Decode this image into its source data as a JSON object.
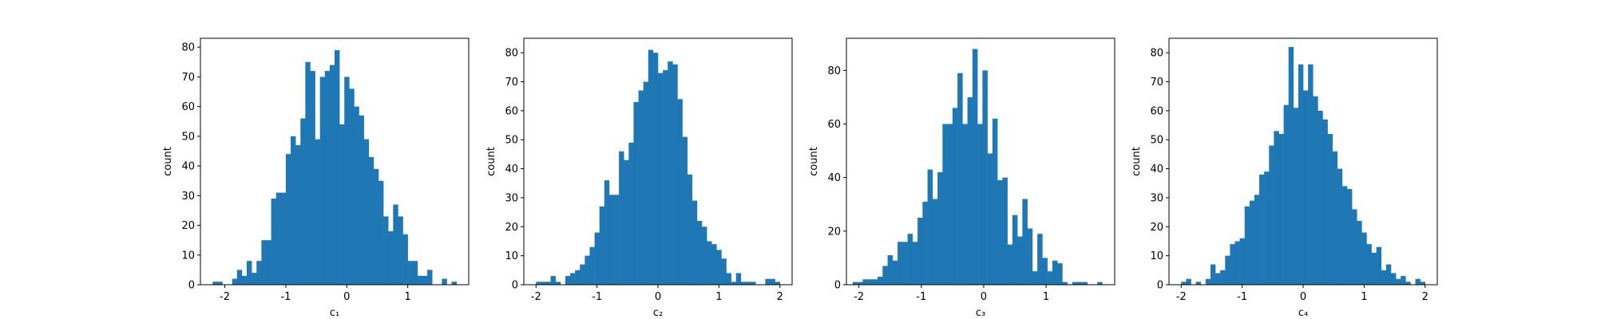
{
  "chart_data": [
    {
      "type": "histogram",
      "xlabel": "c₁",
      "ylabel": "count",
      "color": "#1f77b4",
      "bins": [
        -2.2,
        -2.12,
        -2.04,
        -1.96,
        -1.88,
        -1.8,
        -1.72,
        -1.64,
        -1.56,
        -1.48,
        -1.4,
        -1.32,
        -1.24,
        -1.16,
        -1.08,
        -1.0,
        -0.92,
        -0.84,
        -0.76,
        -0.68,
        -0.6,
        -0.52,
        -0.44,
        -0.36,
        -0.28,
        -0.2,
        -0.12,
        -0.04,
        0.04,
        0.12,
        0.2,
        0.28,
        0.36,
        0.44,
        0.52,
        0.6,
        0.68,
        0.76,
        0.84,
        0.92,
        1.0,
        1.08,
        1.16,
        1.24,
        1.32,
        1.4,
        1.48,
        1.56,
        1.64,
        1.72,
        1.8
      ],
      "values": [
        1,
        1,
        0,
        0,
        2,
        5,
        3,
        8,
        4,
        8,
        15,
        15,
        29,
        31,
        31,
        44,
        50,
        47,
        56,
        75,
        72,
        49,
        70,
        72,
        74,
        79,
        54,
        70,
        66,
        60,
        57,
        49,
        43,
        39,
        35,
        23,
        18,
        27,
        23,
        17,
        8,
        8,
        3,
        3,
        5,
        0,
        0,
        2,
        0,
        1
      ],
      "xlim": [
        -2.4,
        2.0
      ],
      "xticks": [
        -2,
        -1,
        0,
        1
      ],
      "ylim": [
        0,
        83
      ],
      "yticks": [
        0,
        10,
        20,
        30,
        40,
        50,
        60,
        70,
        80
      ]
    },
    {
      "type": "histogram",
      "xlabel": "c₂",
      "ylabel": "count",
      "color": "#1f77b4",
      "bins": [
        -2.0,
        -1.92,
        -1.84,
        -1.76,
        -1.68,
        -1.6,
        -1.52,
        -1.44,
        -1.36,
        -1.28,
        -1.2,
        -1.12,
        -1.04,
        -0.96,
        -0.88,
        -0.8,
        -0.72,
        -0.64,
        -0.56,
        -0.48,
        -0.4,
        -0.32,
        -0.24,
        -0.16,
        -0.08,
        0,
        0.08,
        0.16,
        0.24,
        0.32,
        0.4,
        0.48,
        0.56,
        0.64,
        0.72,
        0.8,
        0.88,
        0.96,
        1.04,
        1.12,
        1.2,
        1.28,
        1.36,
        1.44,
        1.52,
        1.6,
        1.68,
        1.76,
        1.84,
        1.92,
        2.0
      ],
      "values": [
        1,
        1,
        1,
        3,
        1,
        0,
        3,
        4,
        5,
        7,
        10,
        13,
        18,
        27,
        36,
        31,
        31,
        46,
        43,
        49,
        63,
        67,
        70,
        81,
        80,
        73,
        74,
        77,
        76,
        64,
        51,
        38,
        29,
        22,
        20,
        15,
        14,
        12,
        9,
        4,
        1,
        4,
        1,
        1,
        1,
        0,
        0,
        2,
        2,
        1
      ],
      "xlim": [
        -2.2,
        2.2
      ],
      "xticks": [
        -2,
        -1,
        0,
        1,
        2
      ],
      "ylim": [
        0,
        85
      ],
      "yticks": [
        0,
        10,
        20,
        30,
        40,
        50,
        60,
        70,
        80
      ]
    },
    {
      "type": "histogram",
      "xlabel": "c₃",
      "ylabel": "count",
      "color": "#1f77b4",
      "bins": [
        -2.1,
        -2.02,
        -1.94,
        -1.86,
        -1.78,
        -1.7,
        -1.62,
        -1.54,
        -1.46,
        -1.38,
        -1.3,
        -1.22,
        -1.14,
        -1.06,
        -0.98,
        -0.9,
        -0.82,
        -0.74,
        -0.66,
        -0.58,
        -0.5,
        -0.42,
        -0.34,
        -0.26,
        -0.18,
        -0.1,
        -0.02,
        0.06,
        0.14,
        0.22,
        0.3,
        0.38,
        0.46,
        0.54,
        0.62,
        0.7,
        0.78,
        0.86,
        0.94,
        1.02,
        1.1,
        1.18,
        1.26,
        1.34,
        1.42,
        1.5,
        1.58,
        1.66,
        1.74,
        1.82,
        1.9
      ],
      "values": [
        1,
        1,
        2,
        2,
        2,
        3,
        7,
        11,
        9,
        16,
        16,
        19,
        16,
        25,
        31,
        43,
        32,
        42,
        60,
        60,
        66,
        79,
        60,
        70,
        88,
        60,
        80,
        49,
        62,
        39,
        40,
        15,
        26,
        18,
        32,
        21,
        5,
        19,
        10,
        5,
        9,
        8,
        1,
        0,
        1,
        1,
        1,
        0,
        0,
        1
      ],
      "xlim": [
        -2.2,
        2.1
      ],
      "xticks": [
        -2,
        -1,
        0,
        1
      ],
      "ylim": [
        0,
        92
      ],
      "yticks": [
        0,
        20,
        40,
        60,
        80
      ]
    },
    {
      "type": "histogram",
      "xlabel": "c₄",
      "ylabel": "count",
      "color": "#1f77b4",
      "bins": [
        -2.0,
        -1.92,
        -1.84,
        -1.76,
        -1.68,
        -1.6,
        -1.52,
        -1.44,
        -1.36,
        -1.28,
        -1.2,
        -1.12,
        -1.04,
        -0.96,
        -0.88,
        -0.8,
        -0.72,
        -0.64,
        -0.56,
        -0.48,
        -0.4,
        -0.32,
        -0.24,
        -0.16,
        -0.08,
        0,
        0.08,
        0.16,
        0.24,
        0.32,
        0.4,
        0.48,
        0.56,
        0.64,
        0.72,
        0.8,
        0.88,
        0.96,
        1.04,
        1.12,
        1.2,
        1.28,
        1.36,
        1.44,
        1.52,
        1.6,
        1.68,
        1.76,
        1.84,
        1.92,
        2.0
      ],
      "values": [
        1,
        2,
        0,
        1,
        0,
        2,
        7,
        4,
        5,
        10,
        14,
        15,
        16,
        27,
        29,
        31,
        38,
        39,
        48,
        53,
        52,
        62,
        82,
        61,
        76,
        67,
        76,
        65,
        60,
        57,
        52,
        46,
        40,
        34,
        33,
        26,
        22,
        18,
        14,
        11,
        13,
        5,
        7,
        4,
        2,
        3,
        1,
        0,
        2,
        1
      ],
      "xlim": [
        -2.2,
        2.2
      ],
      "xticks": [
        -2,
        -1,
        0,
        1,
        2
      ],
      "ylim": [
        0,
        85
      ],
      "yticks": [
        0,
        10,
        20,
        30,
        40,
        50,
        60,
        70,
        80
      ]
    }
  ]
}
